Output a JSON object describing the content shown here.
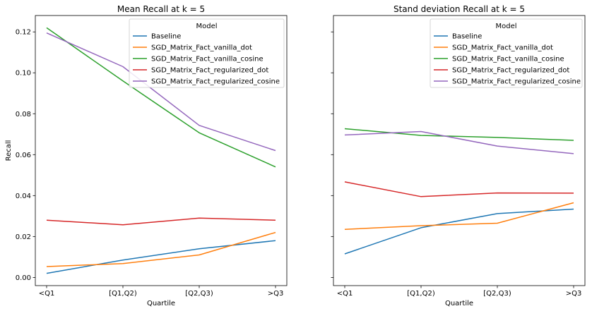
{
  "chart_data": [
    {
      "type": "line",
      "title": "Mean Recall at k = 5",
      "xlabel": "Quartile",
      "ylabel": "Recall",
      "categories": [
        "<Q1",
        "[Q1,Q2)",
        "[Q2,Q3)",
        ">Q3"
      ],
      "ylim": [
        -0.004,
        0.128
      ],
      "yticks": [
        0.0,
        0.02,
        0.04,
        0.06,
        0.08,
        0.1,
        0.12
      ],
      "yticklabels": [
        "0.00",
        "0.02",
        "0.04",
        "0.06",
        "0.08",
        "0.10",
        "0.12"
      ],
      "grid": false,
      "legend": {
        "title": "Model",
        "placement": "top-right"
      },
      "series": [
        {
          "name": "Baseline",
          "color": "#1f77b4",
          "values": [
            0.002,
            0.0085,
            0.014,
            0.018
          ]
        },
        {
          "name": "SGD_Matrix_Fact_vanilla_dot",
          "color": "#ff7f0e",
          "values": [
            0.0053,
            0.0068,
            0.011,
            0.022
          ]
        },
        {
          "name": "SGD_Matrix_Fact_vanilla_cosine",
          "color": "#2ca02c",
          "values": [
            0.122,
            0.096,
            0.0707,
            0.054
          ]
        },
        {
          "name": "SGD_Matrix_Fact_regularized_dot",
          "color": "#d62728",
          "values": [
            0.028,
            0.0257,
            0.029,
            0.028
          ]
        },
        {
          "name": "SGD_Matrix_Fact_regularized_cosine",
          "color": "#9467bd",
          "values": [
            0.1195,
            0.103,
            0.0743,
            0.062
          ]
        }
      ]
    },
    {
      "type": "line",
      "title": "Stand deviation Recall at k = 5",
      "xlabel": "Quartile",
      "ylabel": "",
      "categories": [
        "<Q1",
        "[Q1,Q2)",
        "[Q2,Q3)",
        ">Q3"
      ],
      "ylim": [
        -0.004,
        0.128
      ],
      "yticks": [
        0.0,
        0.02,
        0.04,
        0.06,
        0.08,
        0.1,
        0.12
      ],
      "yticklabels": [],
      "grid": false,
      "legend": {
        "title": "Model",
        "placement": "top-right"
      },
      "series": [
        {
          "name": "Baseline",
          "color": "#1f77b4",
          "values": [
            0.0115,
            0.0243,
            0.0312,
            0.0334
          ]
        },
        {
          "name": "SGD_Matrix_Fact_vanilla_dot",
          "color": "#ff7f0e",
          "values": [
            0.0235,
            0.0253,
            0.0265,
            0.0365
          ]
        },
        {
          "name": "SGD_Matrix_Fact_vanilla_cosine",
          "color": "#2ca02c",
          "values": [
            0.0727,
            0.0694,
            0.0684,
            0.067
          ]
        },
        {
          "name": "SGD_Matrix_Fact_regularized_dot",
          "color": "#d62728",
          "values": [
            0.0467,
            0.0395,
            0.0413,
            0.0412
          ]
        },
        {
          "name": "SGD_Matrix_Fact_regularized_cosine",
          "color": "#9467bd",
          "values": [
            0.0696,
            0.0713,
            0.0642,
            0.0605
          ]
        }
      ]
    }
  ]
}
